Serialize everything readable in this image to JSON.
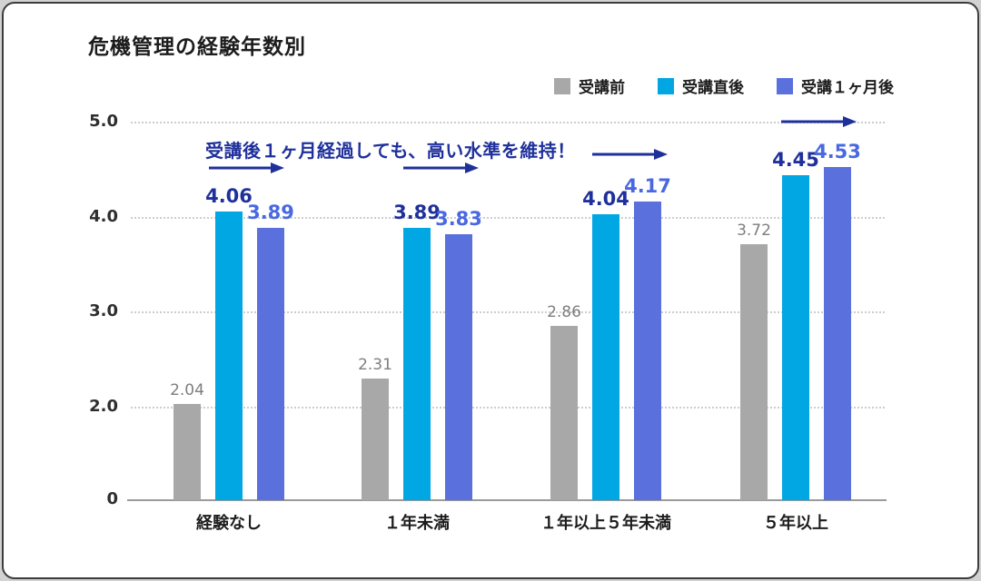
{
  "title": "危機管理の経験年数別",
  "annotation": "受講後１ヶ月経過しても、高い水準を維持！",
  "colors": {
    "accent_navy": "#1f309b",
    "gridline": "#cdcdcd",
    "axis": "#9a9a9a",
    "card_background": "#ffffff",
    "card_border": "#3c3c3c"
  },
  "chart_data": {
    "type": "bar",
    "title": "危機管理の経験年数別",
    "annotation": "受講後１ヶ月経過しても、高い水準を維持！",
    "categories": [
      "経験なし",
      "１年未満",
      "１年以上５年未満",
      "５年以上"
    ],
    "series": [
      {
        "name": "受講前",
        "color": "#a8a8a8",
        "label_color": "#7e7e7e",
        "values": [
          2.04,
          2.31,
          2.86,
          3.72
        ]
      },
      {
        "name": "受講直後",
        "color": "#00a7e3",
        "label_color": "#1f309b",
        "values": [
          4.06,
          3.89,
          4.04,
          4.45
        ]
      },
      {
        "name": "受講１ヶ月後",
        "color": "#5a70dc",
        "label_color": "#4a68e0",
        "values": [
          3.89,
          3.83,
          4.17,
          4.53
        ]
      }
    ],
    "ylim": [
      0,
      5.0
    ],
    "yticks": [
      {
        "label": "5.0",
        "value": 5
      },
      {
        "label": "4.0",
        "value": 4
      },
      {
        "label": "3.0",
        "value": 3
      },
      {
        "label": "2.0",
        "value": 2
      },
      {
        "label": "0",
        "value": 0
      }
    ],
    "legend_position": "top-right",
    "grid": "horizontal-dotted",
    "xlabel": "",
    "ylabel": ""
  }
}
